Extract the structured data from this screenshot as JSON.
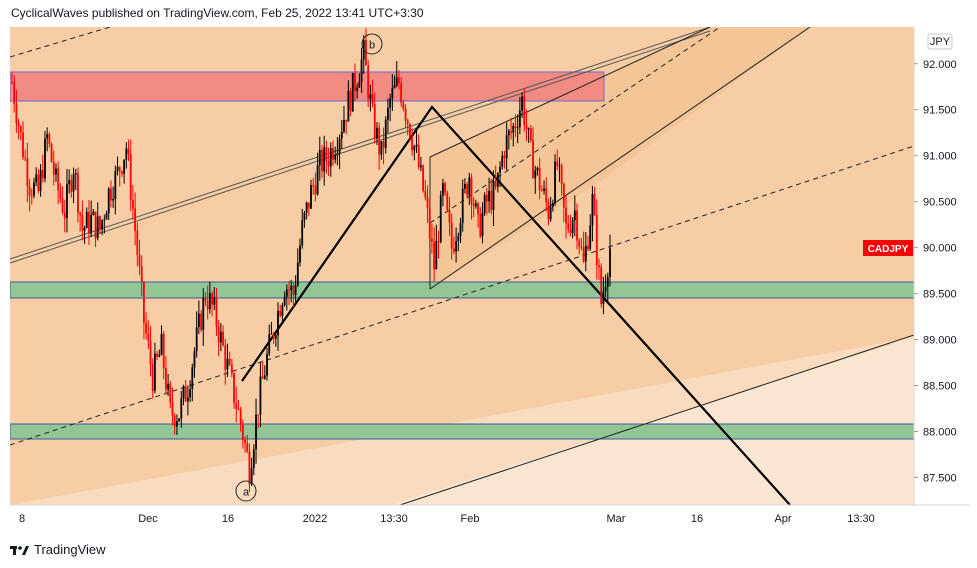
{
  "header": {
    "text": "CyclicalWaves published on TradingView.com, Feb 25, 2022 13:41 UTC+3:30"
  },
  "footer": {
    "brand": "TradingView"
  },
  "chart_data": {
    "type": "candlestick",
    "symbol": "CADJPY",
    "currency_label": "JPY",
    "last_price_label": "CADJPY",
    "colors": {
      "up": "#000000",
      "down": "#ff0000",
      "background": "#f6cda4",
      "label_bg": "#ff0000"
    },
    "x_ticks": [
      "8",
      "Dec",
      "16",
      "2022",
      "13:30",
      "Feb",
      "Mar",
      "16",
      "Apr",
      "13:30"
    ],
    "y_ticks": [
      "92.000",
      "91.500",
      "91.000",
      "90.500",
      "90.000",
      "89.500",
      "89.000",
      "88.500",
      "88.000",
      "87.500"
    ],
    "ylim": [
      87.2,
      92.4
    ],
    "waves": [
      "a",
      "b"
    ],
    "zones": [
      {
        "name": "resistance",
        "low": 91.65,
        "high": 91.95,
        "color": "#f28b82"
      },
      {
        "name": "support-upper",
        "low": 89.48,
        "high": 89.65,
        "color": "#93c695"
      },
      {
        "name": "support-lower",
        "low": 87.9,
        "high": 88.06,
        "color": "#93c695"
      }
    ],
    "price_path": [
      [
        0,
        91.8
      ],
      [
        4,
        91.2
      ],
      [
        8,
        90.7
      ],
      [
        12,
        90.6
      ],
      [
        16,
        91.2
      ],
      [
        20,
        90.7
      ],
      [
        24,
        90.4
      ],
      [
        28,
        90.9
      ],
      [
        32,
        90.2
      ],
      [
        36,
        90.3
      ],
      [
        40,
        90.2
      ],
      [
        44,
        90.6
      ],
      [
        48,
        90.8
      ],
      [
        52,
        91.1
      ],
      [
        56,
        90.2
      ],
      [
        60,
        89.2
      ],
      [
        64,
        88.6
      ],
      [
        68,
        88.9
      ],
      [
        72,
        88.2
      ],
      [
        76,
        88.2
      ],
      [
        80,
        88.5
      ],
      [
        84,
        89.0
      ],
      [
        88,
        89.5
      ],
      [
        92,
        89.3
      ],
      [
        96,
        88.9
      ],
      [
        100,
        88.5
      ],
      [
        104,
        88.1
      ],
      [
        108,
        87.6
      ],
      [
        112,
        88.3
      ],
      [
        116,
        88.8
      ],
      [
        120,
        89.2
      ],
      [
        124,
        89.6
      ],
      [
        128,
        89.5
      ],
      [
        132,
        90.2
      ],
      [
        136,
        90.6
      ],
      [
        140,
        90.9
      ],
      [
        144,
        91.0
      ],
      [
        148,
        91.2
      ],
      [
        152,
        91.5
      ],
      [
        156,
        91.8
      ],
      [
        160,
        92.1
      ],
      [
        164,
        91.4
      ],
      [
        168,
        91.0
      ],
      [
        172,
        91.6
      ],
      [
        176,
        91.8
      ],
      [
        180,
        91.4
      ],
      [
        184,
        91.0
      ],
      [
        188,
        90.5
      ],
      [
        192,
        89.8
      ],
      [
        196,
        90.6
      ],
      [
        200,
        90.0
      ],
      [
        204,
        90.4
      ],
      [
        208,
        90.8
      ],
      [
        212,
        90.2
      ],
      [
        216,
        90.5
      ],
      [
        220,
        90.6
      ],
      [
        224,
        91.1
      ],
      [
        228,
        91.3
      ],
      [
        232,
        91.6
      ],
      [
        236,
        91.0
      ],
      [
        240,
        90.7
      ],
      [
        244,
        90.4
      ],
      [
        248,
        90.9
      ],
      [
        252,
        90.2
      ],
      [
        256,
        90.4
      ],
      [
        260,
        89.8
      ],
      [
        264,
        90.5
      ],
      [
        268,
        89.4
      ],
      [
        272,
        90.0
      ]
    ]
  }
}
